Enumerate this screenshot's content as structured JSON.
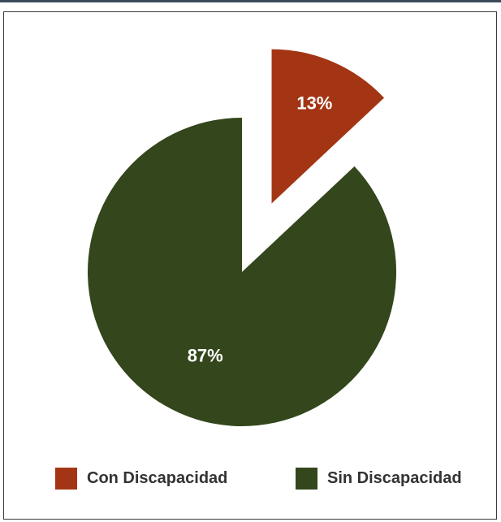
{
  "chart_data": {
    "type": "pie",
    "title": "",
    "categories": [
      "Con Discapacidad",
      "Sin Discapacidad"
    ],
    "values": [
      13,
      87
    ],
    "data_labels": [
      "13%",
      "87%"
    ],
    "colors": [
      "#a33514",
      "#33461c"
    ],
    "exploded": [
      true,
      false
    ],
    "legend_position": "bottom"
  },
  "legend": {
    "items": [
      {
        "label": "Con Discapacidad",
        "color": "#a33514"
      },
      {
        "label": "Sin Discapacidad",
        "color": "#33461c"
      }
    ]
  }
}
